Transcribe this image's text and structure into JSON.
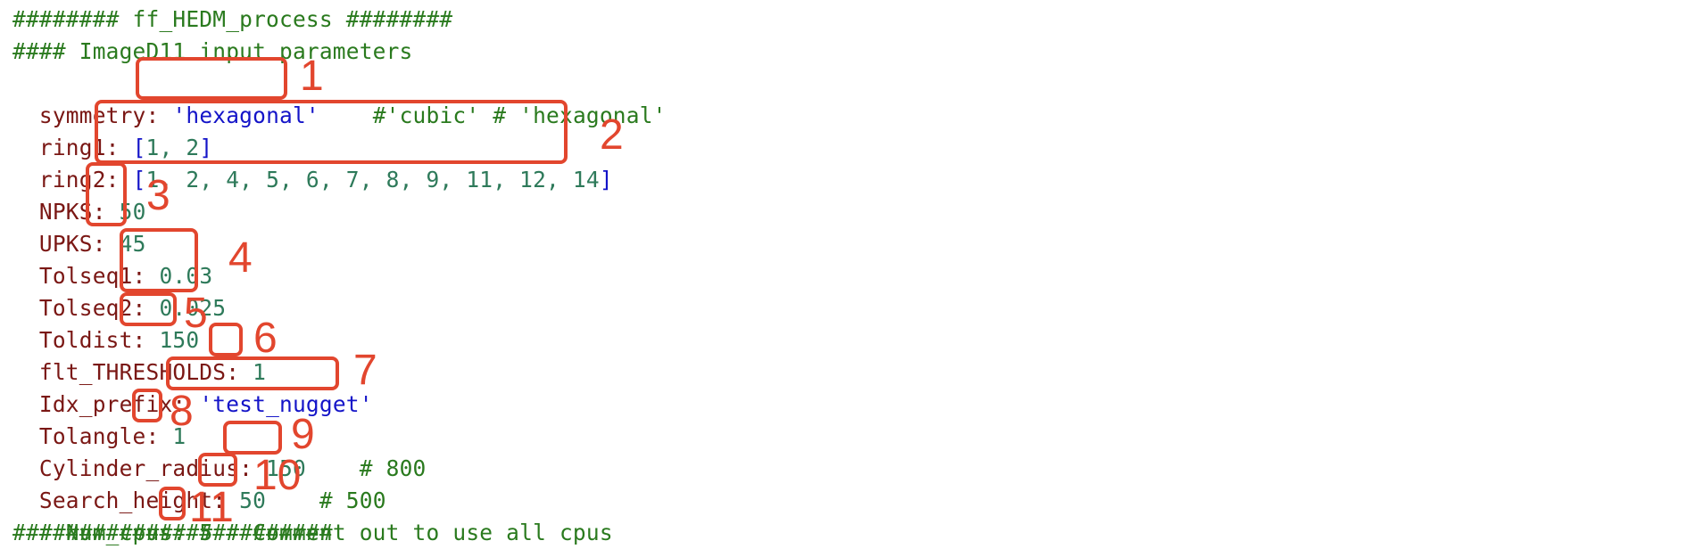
{
  "header": {
    "title_line": "######## ff_HEDM_process ########",
    "section_line": "#### ImageD11 input parameters",
    "footer_line": "########################"
  },
  "params": {
    "symmetry": {
      "key": "symmetry:",
      "value": "'hexagonal'",
      "comment": "#'cubic' # 'hexagonal'"
    },
    "ring1": {
      "key": "ring1:",
      "open": "[",
      "items": "1, 2",
      "close": "]"
    },
    "ring2": {
      "key": "ring2:",
      "open": "[",
      "items": "1, 2, 4, 5, 6, 7, 8, 9, 11, 12, 14",
      "close": "]"
    },
    "npks": {
      "key": "NPKS:",
      "value": "50"
    },
    "upks": {
      "key": "UPKS:",
      "value": "45"
    },
    "tolseq1": {
      "key": "Tolseq1:",
      "value": "0.03"
    },
    "tolseq2": {
      "key": "Tolseq2:",
      "value": "0.025"
    },
    "toldist": {
      "key": "Toldist:",
      "value": "150"
    },
    "flt_thresholds": {
      "key": "flt_THRESHOLDS:",
      "value": "1"
    },
    "idx_prefix": {
      "key": "Idx_prefix:",
      "value": "'test_nugget'"
    },
    "tolangle": {
      "key": "Tolangle:",
      "value": "1"
    },
    "cylinder_radius": {
      "key": "Cylinder_radius:",
      "value": "150",
      "comment": "# 800"
    },
    "search_height": {
      "key": "Search_height:",
      "value": "50",
      "comment": "# 500"
    },
    "num_cpus": {
      "prefix": "# Num_cpus:",
      "value": "5",
      "comment": "# Comment out to use all cpus"
    }
  },
  "annotations": [
    "1",
    "2",
    "3",
    "4",
    "5",
    "6",
    "7",
    "8",
    "9",
    "10",
    "11"
  ],
  "colors": {
    "annotation": "#e2462e",
    "comment": "#2a7a1e",
    "key": "#7a1714",
    "number": "#2e7a5a",
    "string": "#1414c8"
  }
}
